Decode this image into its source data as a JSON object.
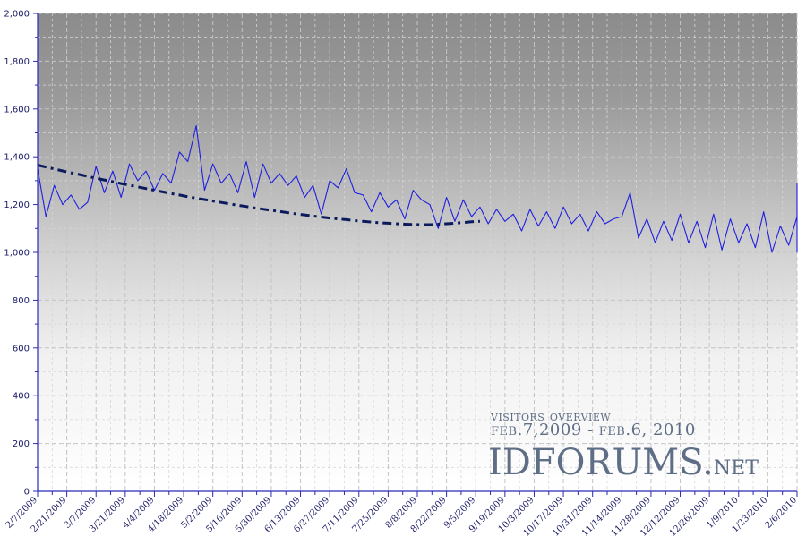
{
  "chart_data": {
    "type": "line",
    "title": "",
    "xlabel": "",
    "ylabel": "",
    "ylim": [
      0,
      2000
    ],
    "yticks": [
      "0",
      "200",
      "400",
      "600",
      "800",
      "1,000",
      "1,200",
      "1,400",
      "1,600",
      "1,800",
      "2,000"
    ],
    "xticks": [
      "2/7/2009",
      "2/21/2009",
      "3/7/2009",
      "3/21/2009",
      "4/4/2009",
      "4/18/2009",
      "5/2/2009",
      "5/16/2009",
      "5/30/2009",
      "6/13/2009",
      "6/27/2009",
      "7/11/2009",
      "7/25/2009",
      "8/8/2009",
      "8/22/2009",
      "9/5/2009",
      "9/19/2009",
      "10/3/2009",
      "10/17/2009",
      "10/31/2009",
      "11/14/2009",
      "11/28/2009",
      "12/12/2009",
      "12/26/2009",
      "1/9/2010",
      "1/23/2010",
      "2/6/2010"
    ],
    "grid": true,
    "series": [
      {
        "name": "",
        "style": "solid",
        "color": "#1f1fe0",
        "x_start": "2/7/2009",
        "x_step_days": 4,
        "values": [
          1350,
          1150,
          1280,
          1200,
          1240,
          1180,
          1210,
          1360,
          1250,
          1340,
          1230,
          1370,
          1300,
          1340,
          1260,
          1330,
          1290,
          1420,
          1380,
          1530,
          1260,
          1370,
          1290,
          1330,
          1250,
          1380,
          1230,
          1370,
          1290,
          1330,
          1280,
          1320,
          1230,
          1280,
          1160,
          1300,
          1270,
          1350,
          1250,
          1240,
          1170,
          1250,
          1190,
          1220,
          1140,
          1260,
          1220,
          1200,
          1100,
          1230,
          1130,
          1220,
          1150,
          1190,
          1120,
          1180,
          1130,
          1160,
          1090,
          1180,
          1110,
          1170,
          1100,
          1190,
          1120,
          1160,
          1090,
          1170,
          1120,
          1140,
          1150,
          1250,
          1060,
          1140,
          1040,
          1130,
          1050,
          1160,
          1040,
          1130,
          1020,
          1160,
          1010,
          1140,
          1040,
          1120,
          1020,
          1170,
          1000,
          1110,
          1030,
          1150,
          1000,
          1120,
          1020,
          1110,
          1070,
          1290,
          1180,
          1210,
          1130,
          1160,
          1150,
          1230,
          1110,
          1280,
          1090,
          1240,
          1140
        ]
      },
      {
        "name": "",
        "style": "dash-dot",
        "color": "#0a1a5c",
        "x_start": "2/7/2009",
        "x_step_days": 4,
        "values": [
          1365,
          1357,
          1349,
          1341,
          1333,
          1326,
          1318,
          1310,
          1303,
          1296,
          1288,
          1281,
          1274,
          1267,
          1260,
          1253,
          1246,
          1240,
          1233,
          1227,
          1221,
          1215,
          1209,
          1203,
          1197,
          1192,
          1186,
          1181,
          1176,
          1171,
          1166,
          1161,
          1157,
          1152,
          1148,
          1144,
          1140,
          1137,
          1133,
          1130,
          1127,
          1124,
          1122,
          1120,
          1118,
          1117,
          1116,
          1116,
          1118,
          1120,
          1122,
          1125,
          1128,
          1130
        ]
      }
    ]
  },
  "annotation": {
    "line1": "visitors overview",
    "line2": "feb.7,2009 - feb.6, 2010",
    "brand_main": "IDFORUMS.",
    "brand_suffix": "net"
  },
  "colors": {
    "bg_top": "#8e8e8e",
    "bg_bottom": "#ffffff",
    "axis": "#2a2ab8",
    "grid_major": "#c8c8c8",
    "grid_minor": "#dcdcdc",
    "annotation_text": "#5e6e86"
  }
}
